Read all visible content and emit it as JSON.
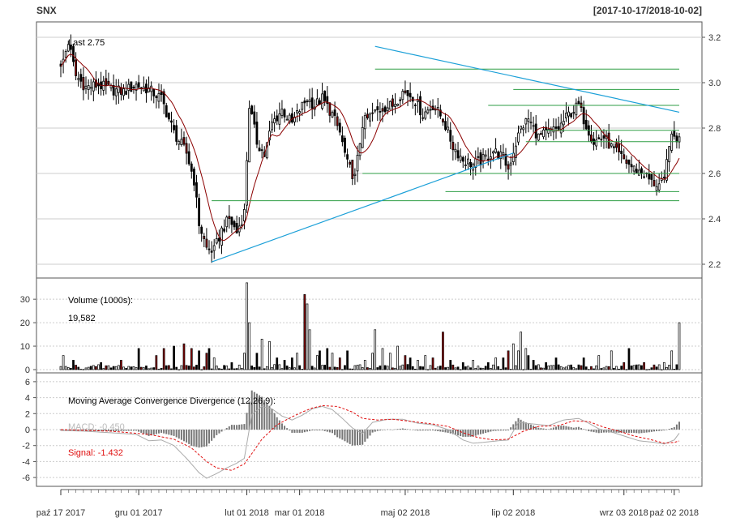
{
  "header": {
    "symbol": "SNX",
    "range": "[2017-10-17/2018-10-02]"
  },
  "colors": {
    "up_candle": "#ffffff",
    "down_candle": "#000000",
    "red_volume": "#8b0000",
    "sma_line": "#8b0000",
    "trendline": "#1ca0d8",
    "level_line": "#2e9e44",
    "macd_line": "#aaaaaa",
    "signal_line": "#e01010",
    "grid": "#cccccc"
  },
  "chart_data": [
    {
      "type": "candlestick",
      "panel": "price",
      "annotation": "Last 2.75",
      "ylim": [
        2.15,
        3.25
      ],
      "y_ticks": [
        "3.2",
        "3.0",
        "2.8",
        "2.6",
        "2.4",
        "2.2"
      ],
      "last": 2.75,
      "x_labels": [
        "paź 17 2017",
        "gru 01 2017",
        "lut 01 2018",
        "mar 01 2018",
        "maj 02 2018",
        "lip 02 2018",
        "wrz 03 2018",
        "paź 02 2018"
      ],
      "x_label_index": [
        0,
        31,
        74,
        95,
        137,
        180,
        224,
        244
      ],
      "n_bars": 247,
      "close_path": [
        [
          0,
          3.06
        ],
        [
          3,
          3.18
        ],
        [
          6,
          3.03
        ],
        [
          10,
          2.98
        ],
        [
          15,
          2.99
        ],
        [
          20,
          2.97
        ],
        [
          25,
          2.96
        ],
        [
          30,
          2.99
        ],
        [
          35,
          2.97
        ],
        [
          40,
          2.93
        ],
        [
          45,
          2.78
        ],
        [
          50,
          2.69
        ],
        [
          53,
          2.57
        ],
        [
          55,
          2.38
        ],
        [
          58,
          2.27
        ],
        [
          61,
          2.26
        ],
        [
          64,
          2.35
        ],
        [
          67,
          2.4
        ],
        [
          70,
          2.34
        ],
        [
          73,
          2.43
        ],
        [
          75,
          2.9
        ],
        [
          78,
          2.74
        ],
        [
          81,
          2.68
        ],
        [
          84,
          2.82
        ],
        [
          88,
          2.88
        ],
        [
          92,
          2.82
        ],
        [
          95,
          2.88
        ],
        [
          98,
          2.93
        ],
        [
          101,
          2.9
        ],
        [
          104,
          2.93
        ],
        [
          108,
          2.86
        ],
        [
          111,
          2.78
        ],
        [
          114,
          2.64
        ],
        [
          117,
          2.58
        ],
        [
          120,
          2.82
        ],
        [
          124,
          2.86
        ],
        [
          128,
          2.89
        ],
        [
          132,
          2.9
        ],
        [
          136,
          2.96
        ],
        [
          140,
          2.94
        ],
        [
          144,
          2.86
        ],
        [
          148,
          2.9
        ],
        [
          152,
          2.84
        ],
        [
          156,
          2.72
        ],
        [
          160,
          2.66
        ],
        [
          164,
          2.64
        ],
        [
          168,
          2.66
        ],
        [
          172,
          2.7
        ],
        [
          176,
          2.67
        ],
        [
          178,
          2.62
        ],
        [
          180,
          2.7
        ],
        [
          183,
          2.8
        ],
        [
          186,
          2.84
        ],
        [
          190,
          2.76
        ],
        [
          194,
          2.78
        ],
        [
          198,
          2.8
        ],
        [
          202,
          2.86
        ],
        [
          206,
          2.9
        ],
        [
          208,
          2.84
        ],
        [
          212,
          2.74
        ],
        [
          216,
          2.76
        ],
        [
          220,
          2.7
        ],
        [
          224,
          2.66
        ],
        [
          228,
          2.62
        ],
        [
          232,
          2.6
        ],
        [
          235,
          2.56
        ],
        [
          238,
          2.55
        ],
        [
          240,
          2.56
        ],
        [
          242,
          2.74
        ],
        [
          244,
          2.76
        ],
        [
          246,
          2.75
        ]
      ],
      "candle_color_hint": "black body = close below open, white body = close above open",
      "sma": {
        "color": "#8b0000"
      },
      "trendlines": [
        {
          "from": [
            60,
            2.21
          ],
          "to": [
            180,
            2.69
          ]
        },
        {
          "from": [
            125,
            3.16
          ],
          "to": [
            246,
            2.87
          ]
        }
      ],
      "horizontal_levels": [
        {
          "value": 3.06,
          "from": 125,
          "to": 246
        },
        {
          "value": 2.97,
          "from": 180,
          "to": 246
        },
        {
          "value": 2.9,
          "from": 170,
          "to": 246
        },
        {
          "value": 2.79,
          "from": 193,
          "to": 246
        },
        {
          "value": 2.74,
          "from": 185,
          "to": 246
        },
        {
          "value": 2.6,
          "from": 120,
          "to": 246
        },
        {
          "value": 2.52,
          "from": 153,
          "to": 246
        },
        {
          "value": 2.48,
          "from": 60,
          "to": 246
        }
      ]
    },
    {
      "type": "bar",
      "panel": "volume",
      "label": "Volume (1000s):",
      "value_text": "19,582",
      "ylim": [
        0,
        38
      ],
      "y_ticks": [
        "30",
        "20",
        "10",
        "0"
      ],
      "spikes": [
        [
          1,
          6
        ],
        [
          5,
          4
        ],
        [
          16,
          3
        ],
        [
          24,
          4
        ],
        [
          31,
          9
        ],
        [
          38,
          6
        ],
        [
          41,
          9
        ],
        [
          45,
          10
        ],
        [
          49,
          11
        ],
        [
          52,
          9
        ],
        [
          55,
          8
        ],
        [
          58,
          7
        ],
        [
          59,
          9
        ],
        [
          61,
          5
        ],
        [
          68,
          3
        ],
        [
          73,
          7
        ],
        [
          74,
          37
        ],
        [
          75,
          20
        ],
        [
          78,
          7
        ],
        [
          80,
          13
        ],
        [
          83,
          12
        ],
        [
          86,
          5
        ],
        [
          89,
          4
        ],
        [
          92,
          5
        ],
        [
          94,
          7
        ],
        [
          97,
          32
        ],
        [
          98,
          28
        ],
        [
          99,
          17
        ],
        [
          102,
          6
        ],
        [
          103,
          8
        ],
        [
          106,
          9
        ],
        [
          108,
          7
        ],
        [
          111,
          5
        ],
        [
          114,
          8
        ],
        [
          121,
          4
        ],
        [
          124,
          7
        ],
        [
          125,
          17
        ],
        [
          128,
          9
        ],
        [
          131,
          7
        ],
        [
          134,
          10
        ],
        [
          137,
          6
        ],
        [
          139,
          5
        ],
        [
          142,
          4
        ],
        [
          145,
          6
        ],
        [
          148,
          5
        ],
        [
          152,
          16
        ],
        [
          155,
          4
        ],
        [
          160,
          3
        ],
        [
          164,
          4
        ],
        [
          170,
          3
        ],
        [
          173,
          5
        ],
        [
          176,
          5
        ],
        [
          178,
          8
        ],
        [
          180,
          11
        ],
        [
          182,
          8
        ],
        [
          183,
          16
        ],
        [
          185,
          9
        ],
        [
          186,
          6
        ],
        [
          188,
          4
        ],
        [
          193,
          3
        ],
        [
          197,
          5
        ],
        [
          203,
          2
        ],
        [
          208,
          5
        ],
        [
          214,
          6
        ],
        [
          219,
          8
        ],
        [
          224,
          3
        ],
        [
          226,
          9
        ],
        [
          232,
          3
        ],
        [
          236,
          2
        ],
        [
          240,
          3
        ],
        [
          243,
          8
        ],
        [
          246,
          20
        ]
      ]
    },
    {
      "type": "line",
      "panel": "macd",
      "label": "Moving Average Convergence Divergence (12,26,9):",
      "macd_text": "MACD: -0.450",
      "signal_text": "Signal: -1.432",
      "ylim": [
        -6.8,
        6.8
      ],
      "y_ticks": [
        "6",
        "4",
        "2",
        "0",
        "-2",
        "-4",
        "-6"
      ],
      "macd": [
        [
          0,
          -0.1
        ],
        [
          10,
          -0.2
        ],
        [
          20,
          -0.4
        ],
        [
          30,
          -0.6
        ],
        [
          35,
          -1.4
        ],
        [
          40,
          -1.3
        ],
        [
          45,
          -2.0
        ],
        [
          50,
          -3.6
        ],
        [
          55,
          -5.4
        ],
        [
          58,
          -6.1
        ],
        [
          62,
          -5.5
        ],
        [
          66,
          -4.8
        ],
        [
          70,
          -4.2
        ],
        [
          73,
          -3.6
        ],
        [
          76,
          1.9
        ],
        [
          80,
          2.9
        ],
        [
          84,
          2.6
        ],
        [
          88,
          1.7
        ],
        [
          92,
          1.2
        ],
        [
          96,
          1.8
        ],
        [
          100,
          2.6
        ],
        [
          104,
          2.9
        ],
        [
          108,
          2.5
        ],
        [
          112,
          1.4
        ],
        [
          116,
          0.2
        ],
        [
          120,
          -0.5
        ],
        [
          124,
          0.9
        ],
        [
          130,
          1.3
        ],
        [
          136,
          1.3
        ],
        [
          142,
          0.8
        ],
        [
          148,
          0.6
        ],
        [
          154,
          0.0
        ],
        [
          160,
          -1.3
        ],
        [
          164,
          -1.7
        ],
        [
          168,
          -1.6
        ],
        [
          174,
          -1.4
        ],
        [
          178,
          -1.3
        ],
        [
          182,
          0.9
        ],
        [
          188,
          0.7
        ],
        [
          194,
          0.5
        ],
        [
          200,
          1.2
        ],
        [
          206,
          1.4
        ],
        [
          210,
          0.8
        ],
        [
          214,
          0.1
        ],
        [
          220,
          -0.4
        ],
        [
          226,
          -1.0
        ],
        [
          230,
          -1.4
        ],
        [
          236,
          -1.6
        ],
        [
          240,
          -1.8
        ],
        [
          244,
          -1.3
        ],
        [
          246,
          -0.45
        ]
      ],
      "signal": [
        [
          0,
          0.0
        ],
        [
          20,
          -0.2
        ],
        [
          35,
          -0.6
        ],
        [
          45,
          -1.2
        ],
        [
          52,
          -2.3
        ],
        [
          58,
          -4.0
        ],
        [
          62,
          -4.8
        ],
        [
          68,
          -5.1
        ],
        [
          73,
          -4.3
        ],
        [
          76,
          -3.0
        ],
        [
          80,
          -1.2
        ],
        [
          86,
          0.6
        ],
        [
          92,
          1.6
        ],
        [
          96,
          2.2
        ],
        [
          100,
          2.7
        ],
        [
          104,
          3.0
        ],
        [
          110,
          2.9
        ],
        [
          116,
          2.2
        ],
        [
          120,
          1.4
        ],
        [
          126,
          1.2
        ],
        [
          132,
          1.3
        ],
        [
          140,
          1.0
        ],
        [
          148,
          0.7
        ],
        [
          154,
          0.4
        ],
        [
          160,
          -0.4
        ],
        [
          166,
          -1.0
        ],
        [
          172,
          -1.3
        ],
        [
          178,
          -1.2
        ],
        [
          184,
          -0.2
        ],
        [
          190,
          0.4
        ],
        [
          198,
          0.5
        ],
        [
          204,
          1.1
        ],
        [
          210,
          1.0
        ],
        [
          216,
          0.3
        ],
        [
          222,
          -0.2
        ],
        [
          228,
          -0.8
        ],
        [
          234,
          -1.2
        ],
        [
          240,
          -1.7
        ],
        [
          244,
          -1.6
        ],
        [
          246,
          -1.432
        ]
      ]
    }
  ]
}
